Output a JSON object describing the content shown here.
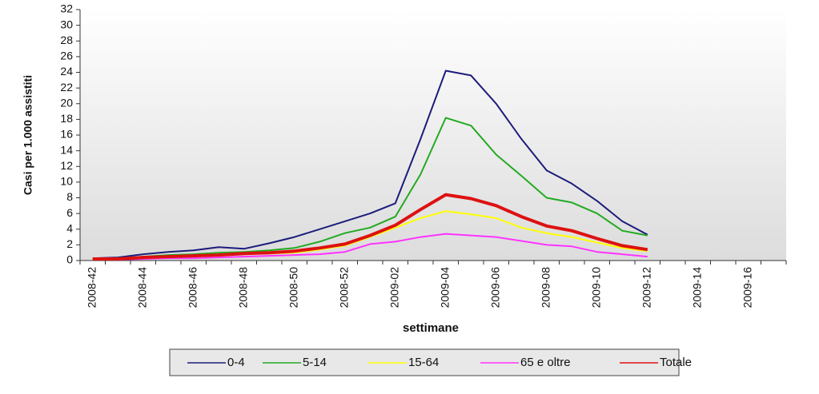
{
  "chart_data": {
    "type": "line",
    "y_label": "Casi per 1.000 assistiti",
    "x_label": "settimane",
    "categories": [
      "2008-42",
      null,
      "2008-44",
      null,
      "2008-46",
      null,
      "2008-48",
      null,
      "2008-50",
      null,
      "2008-52",
      null,
      "2009-02",
      null,
      "2009-04",
      null,
      "2009-06",
      null,
      "2009-08",
      null,
      "2009-10",
      null,
      "2009-12",
      null,
      "2009-14",
      null,
      "2009-16",
      null
    ],
    "series": [
      {
        "name": "0-4",
        "color": "#1c1c7c",
        "values": [
          0.3,
          0.4,
          0.8,
          1.1,
          1.3,
          1.7,
          1.5,
          2.2,
          3.0,
          4.0,
          5.0,
          6.0,
          7.3,
          15.5,
          24.2,
          23.6,
          20.0,
          15.5,
          11.5,
          9.8,
          7.6,
          5.0,
          3.3,
          null,
          null,
          null,
          null,
          null
        ]
      },
      {
        "name": "5-14",
        "color": "#22aa22",
        "values": [
          0.2,
          0.3,
          0.5,
          0.7,
          0.8,
          1.0,
          1.1,
          1.3,
          1.6,
          2.4,
          3.5,
          4.2,
          5.6,
          11.0,
          18.2,
          17.2,
          13.5,
          10.8,
          8.0,
          7.4,
          6.0,
          3.8,
          3.2,
          null,
          null,
          null,
          null,
          null
        ]
      },
      {
        "name": "15-64",
        "color": "#ffff00",
        "values": [
          0.2,
          0.2,
          0.4,
          0.5,
          0.6,
          0.7,
          0.8,
          0.9,
          1.0,
          1.4,
          1.9,
          3.0,
          4.2,
          5.4,
          6.3,
          5.9,
          5.4,
          4.2,
          3.5,
          3.0,
          2.3,
          1.6,
          1.2,
          null,
          null,
          null,
          null,
          null
        ]
      },
      {
        "name": "65 e oltre",
        "color": "#ff33ff",
        "values": [
          0.1,
          0.1,
          0.2,
          0.3,
          0.3,
          0.4,
          0.5,
          0.6,
          0.7,
          0.8,
          1.1,
          2.1,
          2.4,
          3.0,
          3.4,
          3.2,
          3.0,
          2.5,
          2.0,
          1.8,
          1.1,
          0.8,
          0.5,
          null,
          null,
          null,
          null,
          null
        ]
      },
      {
        "name": "Totale",
        "color": "#dd1111",
        "values": [
          0.2,
          0.2,
          0.4,
          0.5,
          0.6,
          0.7,
          0.9,
          1.0,
          1.2,
          1.6,
          2.1,
          3.2,
          4.5,
          6.5,
          8.4,
          7.9,
          7.0,
          5.6,
          4.4,
          3.8,
          2.8,
          1.9,
          1.4,
          null,
          null,
          null,
          null,
          null
        ]
      }
    ],
    "ylim": [
      0,
      32
    ],
    "yticks": [
      0,
      2,
      4,
      6,
      8,
      10,
      12,
      14,
      16,
      18,
      20,
      22,
      24,
      26,
      28,
      30,
      32
    ],
    "legend": "bottom"
  }
}
